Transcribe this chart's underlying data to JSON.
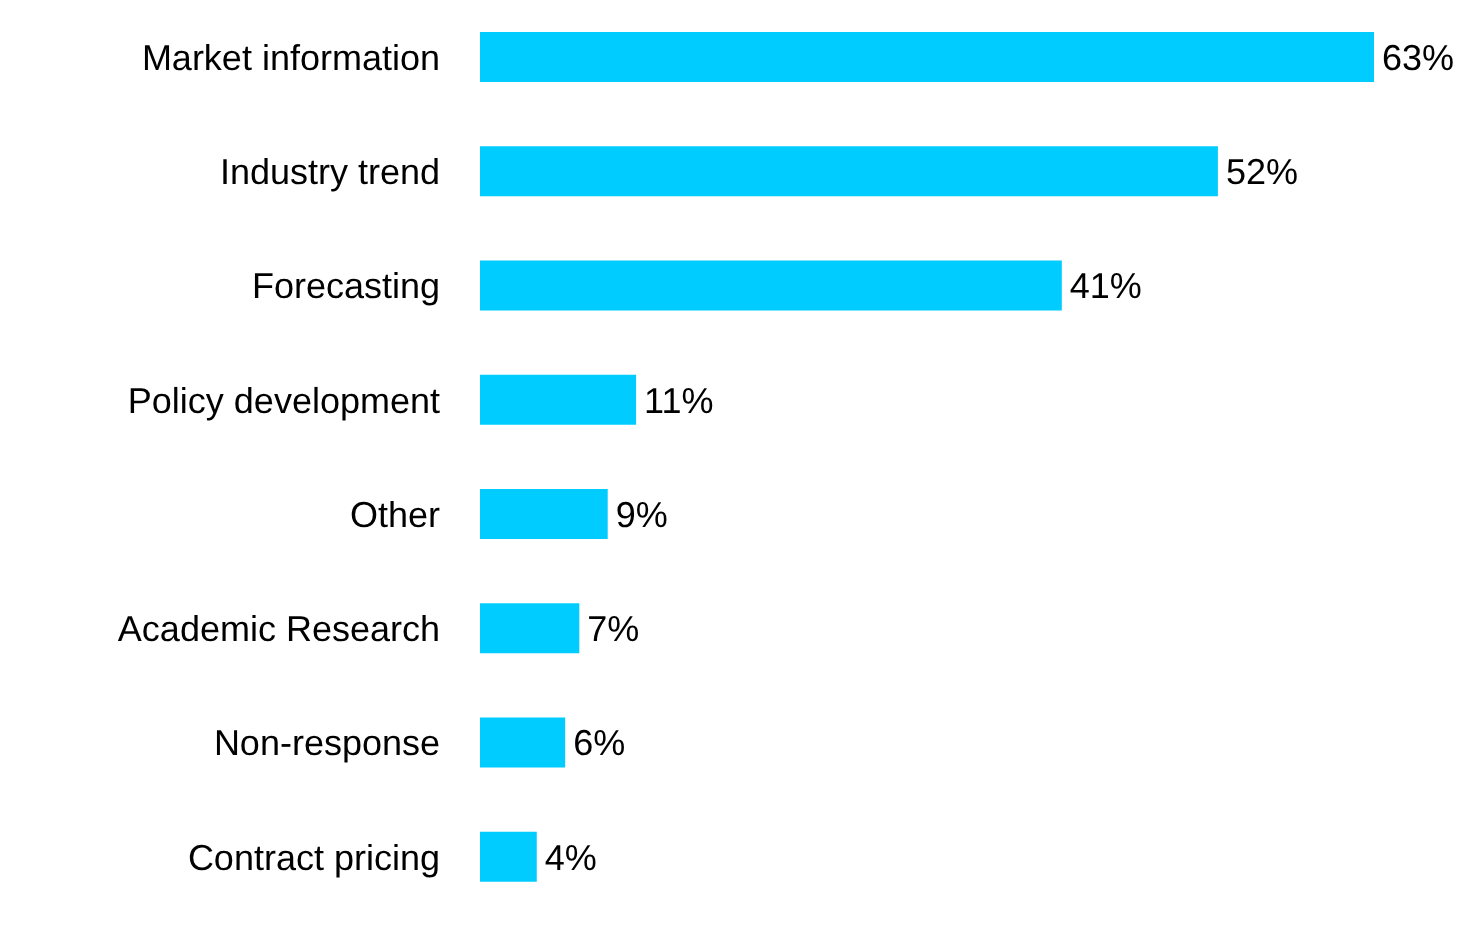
{
  "chart_data": {
    "type": "bar",
    "orientation": "horizontal",
    "categories": [
      "Market information",
      "Industry trend",
      "Forecasting",
      "Policy development",
      "Other",
      "Academic Research",
      "Non-response",
      "Contract pricing"
    ],
    "values": [
      63,
      52,
      41,
      11,
      9,
      7,
      6,
      4
    ],
    "value_labels": [
      "63%",
      "52%",
      "41%",
      "11%",
      "9%",
      "7%",
      "6%",
      "4%"
    ],
    "color": "#00ccff",
    "grid": false,
    "legend": false
  }
}
